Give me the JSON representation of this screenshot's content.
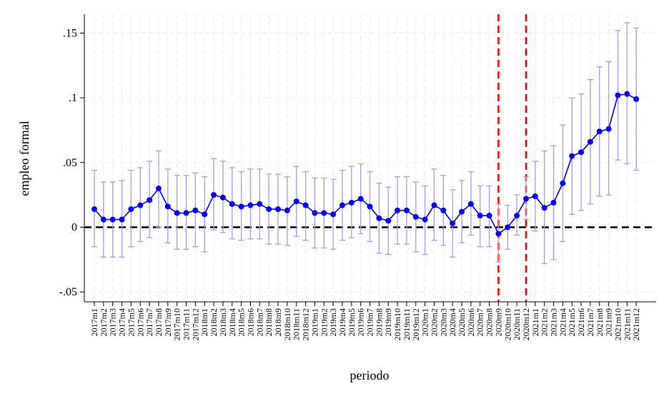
{
  "chart_data": {
    "type": "line",
    "title": "",
    "xlabel": "periodo",
    "ylabel": "empleo formal",
    "ylim": [
      -0.055,
      0.16
    ],
    "yticks": [
      -0.05,
      0,
      0.05,
      0.1,
      0.15
    ],
    "ytick_labels": [
      "-.05",
      "0",
      ".05",
      ".1",
      ".15"
    ],
    "grid": true,
    "categories": [
      "2017m1",
      "2017m2",
      "2017m3",
      "2017m4",
      "2017m5",
      "2017m6",
      "2017m7",
      "2017m8",
      "2017m9",
      "2017m10",
      "2017m11",
      "2017m12",
      "2018m1",
      "2018m2",
      "2018m3",
      "2018m4",
      "2018m5",
      "2018m6",
      "2018m7",
      "2018m8",
      "2018m9",
      "2018m10",
      "2018m11",
      "2018m12",
      "2019m1",
      "2019m2",
      "2019m3",
      "2019m4",
      "2019m5",
      "2019m6",
      "2019m7",
      "2019m8",
      "2019m9",
      "2019m10",
      "2019m11",
      "2019m12",
      "2020m1",
      "2020m2",
      "2020m3",
      "2020m4",
      "2020m5",
      "2020m6",
      "2020m7",
      "2020m8",
      "2020m9",
      "2020m10",
      "2020m11",
      "2020m12",
      "2021m1",
      "2021m2",
      "2021m3",
      "2021m4",
      "2021m5",
      "2021m6",
      "2021m7",
      "2021m8",
      "2021m9",
      "2021m10",
      "2021m11",
      "2021m12"
    ],
    "series": [
      {
        "values": [
          0.014,
          0.006,
          0.006,
          0.006,
          0.014,
          0.017,
          0.021,
          0.03,
          0.016,
          0.011,
          0.011,
          0.013,
          0.01,
          0.025,
          0.023,
          0.018,
          0.016,
          0.017,
          0.018,
          0.014,
          0.014,
          0.013,
          0.02,
          0.017,
          0.011,
          0.011,
          0.01,
          0.017,
          0.019,
          0.022,
          0.016,
          0.007,
          0.005,
          0.013,
          0.013,
          0.008,
          0.006,
          0.017,
          0.013,
          0.003,
          0.012,
          0.018,
          0.009,
          0.009,
          -0.005,
          0.0,
          0.009,
          0.022,
          0.024,
          0.015,
          0.019,
          0.034,
          0.055,
          0.058,
          0.066,
          0.074,
          0.076,
          0.102,
          0.103,
          0.099
        ],
        "ci_low": [
          -0.015,
          -0.023,
          -0.023,
          -0.023,
          -0.015,
          -0.011,
          -0.008,
          0.0,
          -0.012,
          -0.017,
          -0.017,
          -0.015,
          -0.019,
          -0.002,
          -0.004,
          -0.009,
          -0.01,
          -0.009,
          -0.009,
          -0.013,
          -0.013,
          -0.014,
          -0.007,
          -0.01,
          -0.016,
          -0.016,
          -0.017,
          -0.01,
          -0.008,
          -0.005,
          -0.011,
          -0.02,
          -0.021,
          -0.013,
          -0.013,
          -0.019,
          -0.021,
          -0.01,
          -0.014,
          -0.023,
          -0.012,
          -0.006,
          -0.015,
          -0.015,
          -0.027,
          -0.017,
          -0.006,
          0.006,
          -0.003,
          -0.028,
          -0.025,
          -0.011,
          0.01,
          0.013,
          0.018,
          0.024,
          0.025,
          0.052,
          0.049,
          0.044
        ],
        "ci_high": [
          0.044,
          0.035,
          0.035,
          0.036,
          0.044,
          0.046,
          0.051,
          0.059,
          0.045,
          0.04,
          0.04,
          0.042,
          0.039,
          0.053,
          0.051,
          0.046,
          0.043,
          0.045,
          0.045,
          0.041,
          0.041,
          0.039,
          0.047,
          0.043,
          0.038,
          0.038,
          0.037,
          0.044,
          0.047,
          0.049,
          0.043,
          0.034,
          0.031,
          0.039,
          0.039,
          0.035,
          0.032,
          0.045,
          0.04,
          0.029,
          0.036,
          0.043,
          0.032,
          0.032,
          0.018,
          0.017,
          0.025,
          0.039,
          0.051,
          0.059,
          0.063,
          0.079,
          0.1,
          0.103,
          0.114,
          0.124,
          0.128,
          0.152,
          0.158,
          0.154
        ]
      }
    ],
    "reference_lines": {
      "horizontal_at": 0,
      "vertical_at": [
        "2020m9",
        "2020m12"
      ]
    },
    "colors": {
      "series": "#0000ff",
      "ci": "#9e9ef2",
      "zero_line": "#000000",
      "event_lines": "#ff0000",
      "grid": "#ebebeb"
    }
  }
}
